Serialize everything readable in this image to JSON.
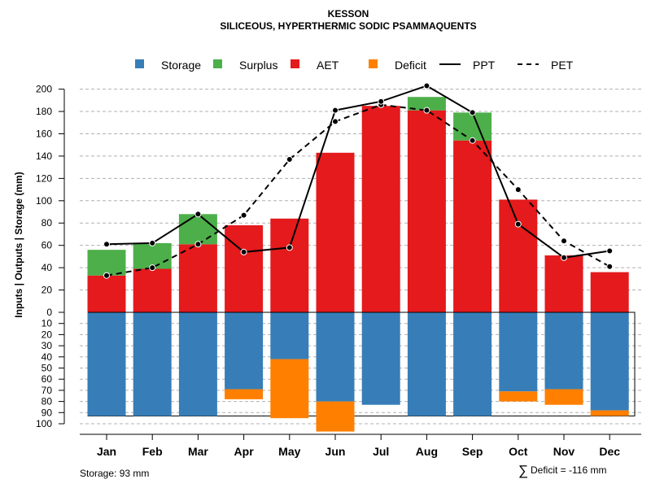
{
  "chart_data": {
    "type": "bar",
    "title": "KESSON",
    "subtitle": "SILICEOUS, HYPERTHERMIC SODIC PSAMMAQUENTS",
    "ylabel": "Inputs | Outputs | Storage    (mm)",
    "categories": [
      "Jan",
      "Feb",
      "Mar",
      "Apr",
      "May",
      "Jun",
      "Jul",
      "Aug",
      "Sep",
      "Oct",
      "Nov",
      "Dec"
    ],
    "ylim_upper": [
      0,
      210
    ],
    "ylim_lower": [
      0,
      100
    ],
    "yticks_upper": [
      "0",
      "20",
      "40",
      "60",
      "80",
      "100",
      "120",
      "140",
      "160",
      "180",
      "200"
    ],
    "yticks_lower": [
      "10",
      "20",
      "30",
      "40",
      "50",
      "60",
      "70",
      "80",
      "90",
      "100"
    ],
    "legend": {
      "storage": "Storage",
      "surplus": "Surplus",
      "aet": "AET",
      "deficit": "Deficit",
      "ppt": "PPT",
      "pet": "PET"
    },
    "colors": {
      "storage": "#377EB8",
      "surplus": "#4DAF4A",
      "aet": "#E41A1C",
      "deficit": "#FF7F00",
      "line": "#000000"
    },
    "series": [
      {
        "name": "AET",
        "values": [
          33,
          39,
          61,
          78,
          84,
          143,
          185,
          181,
          154,
          101,
          51,
          36
        ]
      },
      {
        "name": "Surplus",
        "values": [
          23,
          23,
          27,
          0,
          0,
          0,
          0,
          12,
          25,
          0,
          0,
          0
        ]
      },
      {
        "name": "PPT",
        "values": [
          61,
          62,
          88,
          54,
          58,
          181,
          189,
          203,
          179,
          79,
          49,
          55
        ]
      },
      {
        "name": "PET",
        "values": [
          33,
          40,
          61,
          87,
          137,
          171,
          186,
          181,
          154,
          110,
          64,
          41
        ]
      },
      {
        "name": "Storage",
        "values": [
          93,
          93,
          93,
          69,
          42,
          80,
          83,
          93,
          93,
          71,
          69,
          88
        ]
      },
      {
        "name": "Deficit",
        "values": [
          0,
          0,
          0,
          9,
          53,
          27,
          0,
          0,
          0,
          9,
          14,
          5
        ]
      }
    ],
    "storage_capacity": 93,
    "footer_storage": "Storage: 93 mm",
    "footer_deficit": "Deficit = -116 mm",
    "footer_sum_symbol": "∑"
  }
}
